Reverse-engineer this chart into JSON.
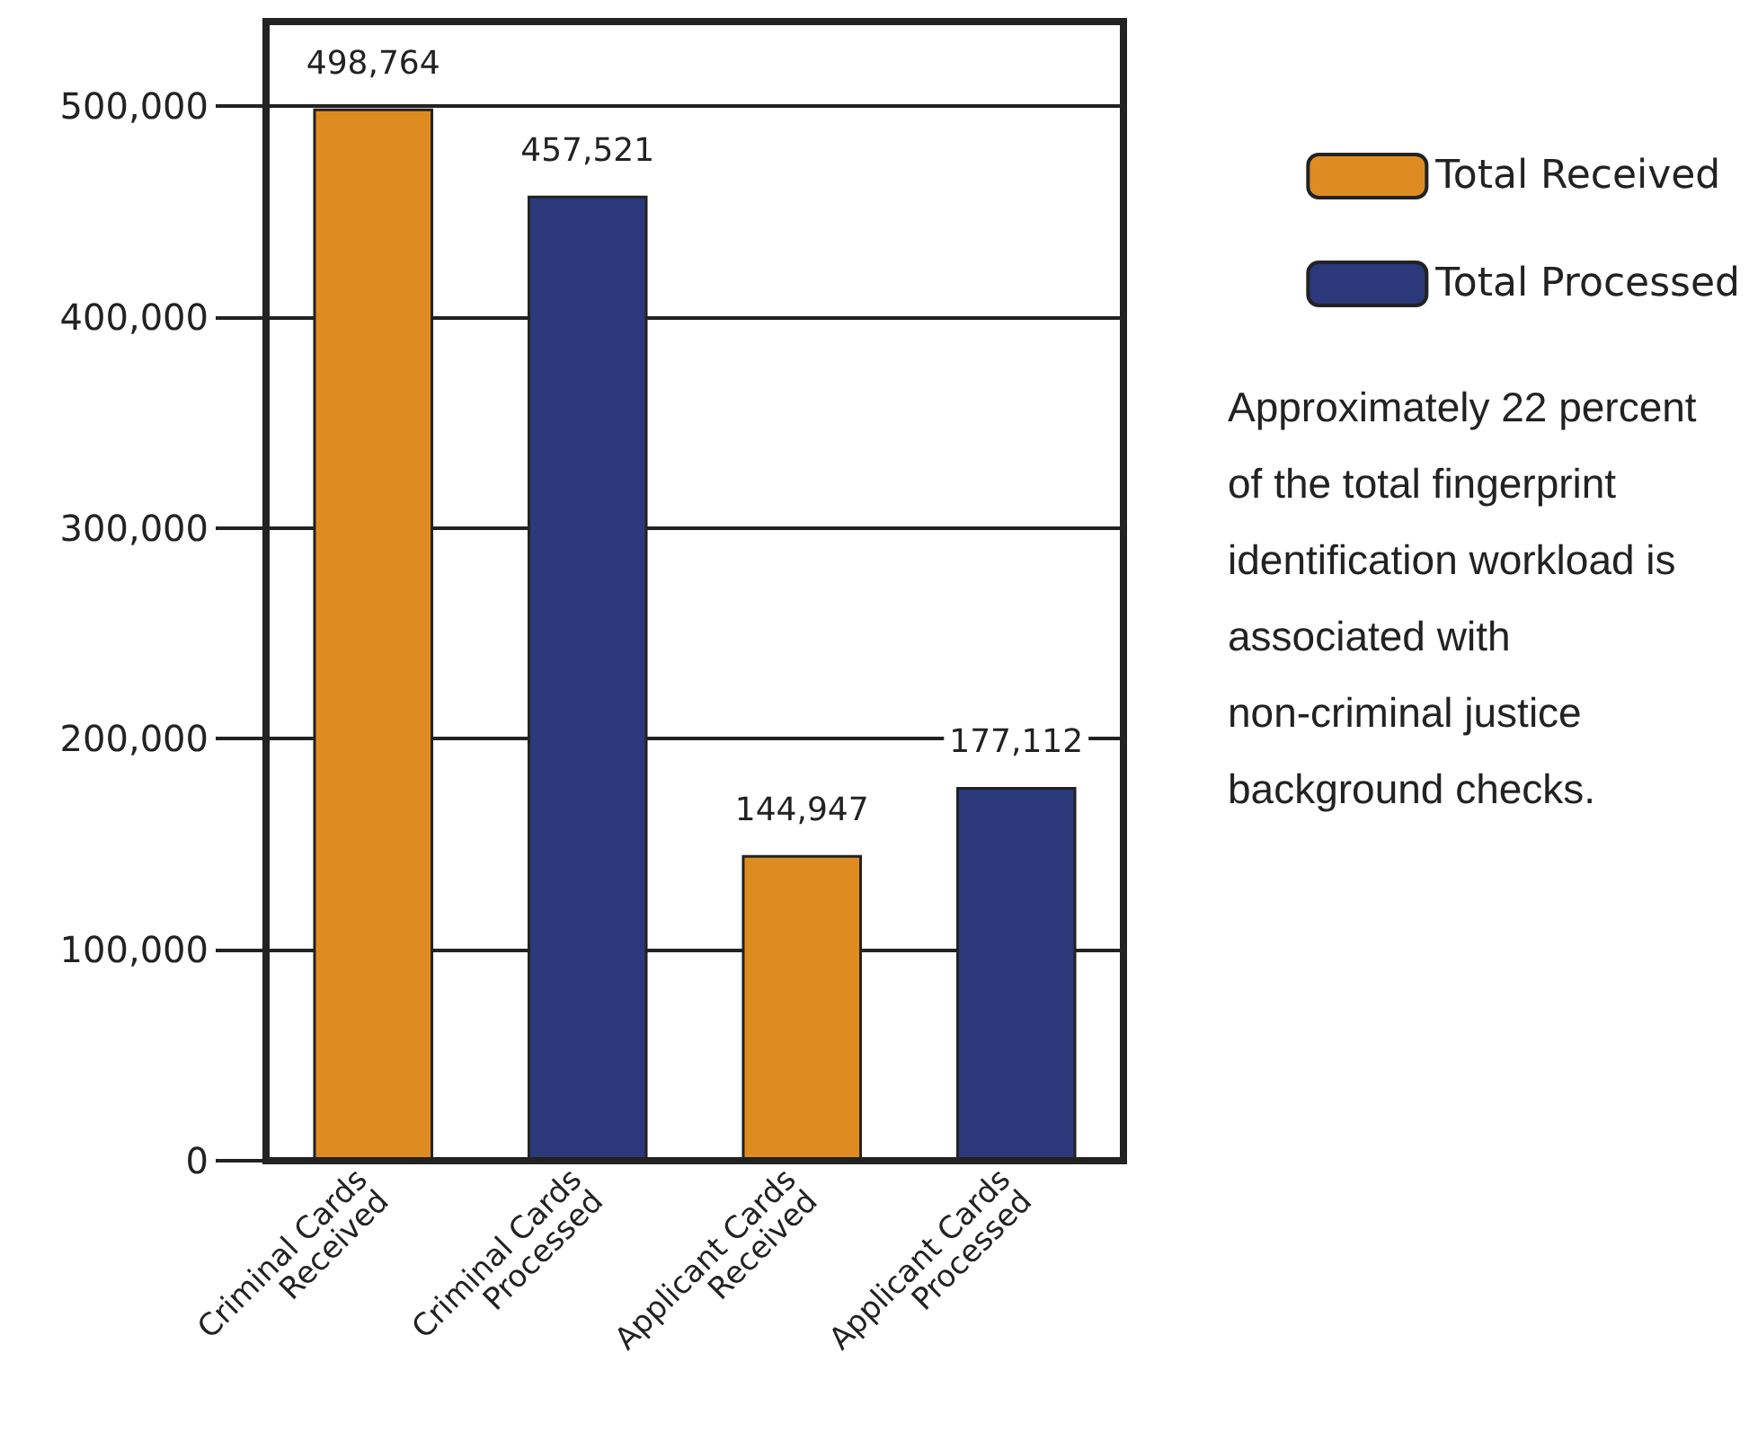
{
  "chart_data": {
    "type": "bar",
    "categories": [
      "Criminal Cards\nReceived",
      "Criminal Cards\nProcessed",
      "Applicant Cards\nReceived",
      "Applicant Cards\nProcessed"
    ],
    "series": [
      {
        "name": "Total Received",
        "color": "#de8c22",
        "values": [
          498764,
          null,
          144947,
          null
        ],
        "value_labels": [
          "498,764",
          null,
          "144,947",
          null
        ]
      },
      {
        "name": "Total Processed",
        "color": "#2b387a",
        "values": [
          null,
          457521,
          null,
          177112
        ],
        "value_labels": [
          null,
          "457,521",
          null,
          "177,112"
        ]
      }
    ],
    "ylim": [
      0,
      540000
    ],
    "yticks": [
      {
        "value": 0,
        "label": "0"
      },
      {
        "value": 100000,
        "label": "100,000"
      },
      {
        "value": 200000,
        "label": "200,000"
      },
      {
        "value": 300000,
        "label": "300,000"
      },
      {
        "value": 400000,
        "label": "400,000"
      },
      {
        "value": 500000,
        "label": "500,000"
      }
    ],
    "grid": "y",
    "legend": "right",
    "annotations": [
      "Approximately 22 percent of the total fingerprint identification workload is associated with non-criminal justice background checks."
    ]
  }
}
